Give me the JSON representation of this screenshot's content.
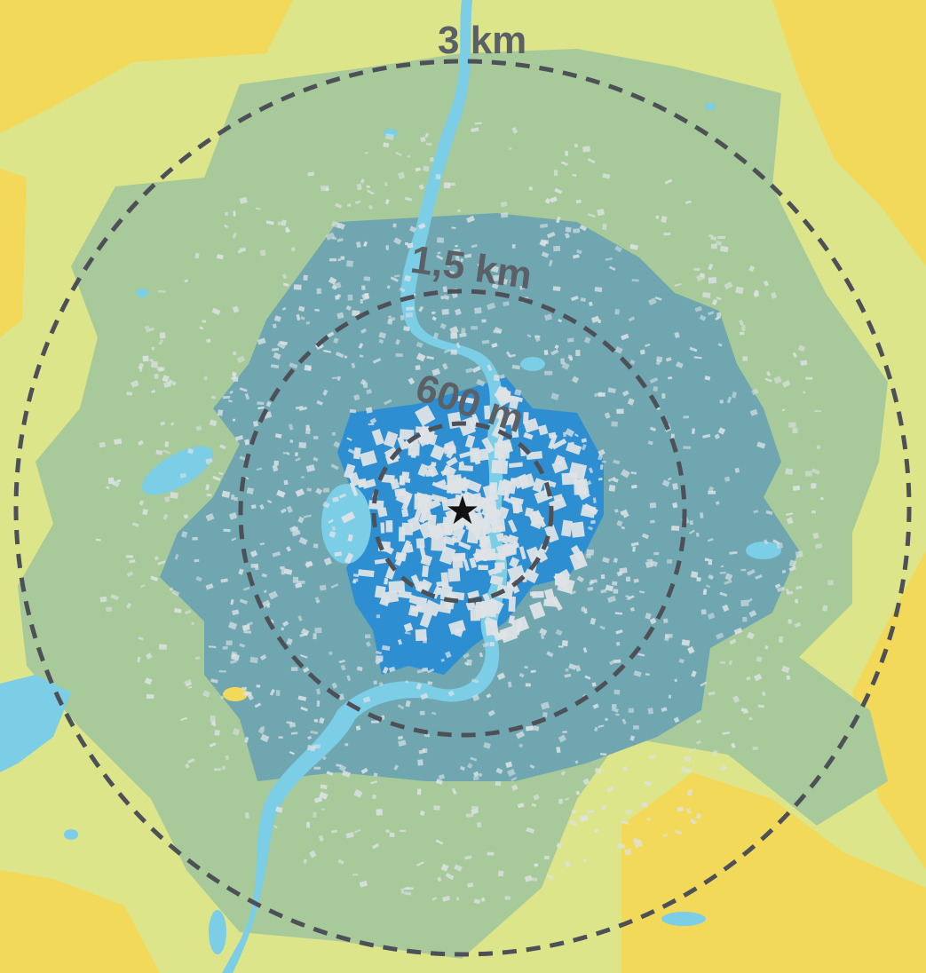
{
  "map": {
    "colors": {
      "background_outer": "#f3d95a",
      "background_light": "#dce58a",
      "zone_3km": "#a8c99a",
      "zone_1_5km": "#6fa6b0",
      "zone_600m": "#2d8fd2",
      "water": "#7ccde6",
      "buildings": "#dde3e6",
      "ring_stroke": "#4d5157",
      "center_marker": "#111111"
    },
    "rings": [
      {
        "id": "ring-3km",
        "label": "3 km"
      },
      {
        "id": "ring-1-5km",
        "label": "1,5 km"
      },
      {
        "id": "ring-600m",
        "label": "600 m"
      }
    ],
    "center_marker": {
      "icon": "star-icon",
      "glyph": "★"
    }
  }
}
